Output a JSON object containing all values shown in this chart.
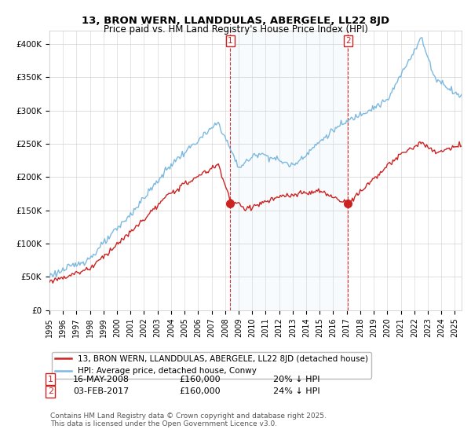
{
  "title": "13, BRON WERN, LLANDDULAS, ABERGELE, LL22 8JD",
  "subtitle": "Price paid vs. HM Land Registry's House Price Index (HPI)",
  "ylabel_ticks": [
    "£0",
    "£50K",
    "£100K",
    "£150K",
    "£200K",
    "£250K",
    "£300K",
    "£350K",
    "£400K"
  ],
  "ytick_values": [
    0,
    50000,
    100000,
    150000,
    200000,
    250000,
    300000,
    350000,
    400000
  ],
  "ylim": [
    0,
    420000
  ],
  "xlim_start": 1995.0,
  "xlim_end": 2025.5,
  "hpi_color": "#7cb9e0",
  "hpi_fill_color": "#d6eaf8",
  "price_color": "#cc2222",
  "marker1_date": 2008.37,
  "marker2_date": 2017.09,
  "marker1_price": 160000,
  "marker2_price": 160000,
  "legend_line1": "13, BRON WERN, LLANDDULAS, ABERGELE, LL22 8JD (detached house)",
  "legend_line2": "HPI: Average price, detached house, Conwy",
  "annotation1_date": "16-MAY-2008",
  "annotation1_price": "£160,000",
  "annotation1_hpi": "20% ↓ HPI",
  "annotation2_date": "03-FEB-2017",
  "annotation2_price": "£160,000",
  "annotation2_hpi": "24% ↓ HPI",
  "footer": "Contains HM Land Registry data © Crown copyright and database right 2025.\nThis data is licensed under the Open Government Licence v3.0.",
  "title_fontsize": 9.5,
  "subtitle_fontsize": 8.5,
  "tick_fontsize": 7.5,
  "legend_fontsize": 7.5,
  "annot_fontsize": 8,
  "footer_fontsize": 6.5,
  "background_color": "#ffffff",
  "grid_color": "#d0d0d0"
}
